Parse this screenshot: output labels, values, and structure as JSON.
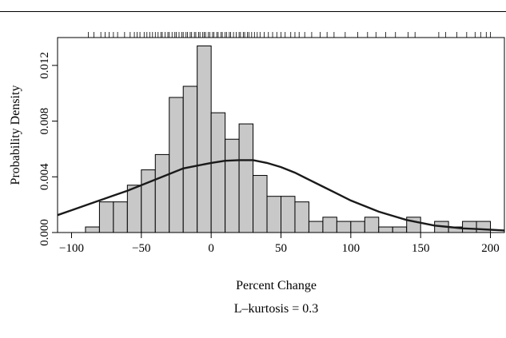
{
  "chart_data": {
    "type": "bar",
    "xlabel": "Percent Change",
    "ylabel": "Probability Density",
    "subtitle": "L–kurtosis = 0.3",
    "xlim": [
      -110,
      210
    ],
    "ylim": [
      0.0,
      0.014
    ],
    "x_ticks": [
      {
        "value": -100,
        "label": "−100"
      },
      {
        "value": -50,
        "label": "−50"
      },
      {
        "value": 0,
        "label": "0"
      },
      {
        "value": 50,
        "label": "50"
      },
      {
        "value": 100,
        "label": "100"
      },
      {
        "value": 150,
        "label": "150"
      },
      {
        "value": 200,
        "label": "200"
      }
    ],
    "y_ticks": [
      {
        "value": 0.0,
        "label": "0.000"
      },
      {
        "value": 0.004,
        "label": "0.004"
      },
      {
        "value": 0.008,
        "label": "0.008"
      },
      {
        "value": 0.012,
        "label": "0.012"
      }
    ],
    "histogram": {
      "bins": [
        {
          "x0": -90,
          "x1": -80,
          "density": 0.0004
        },
        {
          "x0": -80,
          "x1": -70,
          "density": 0.0022
        },
        {
          "x0": -70,
          "x1": -60,
          "density": 0.0022
        },
        {
          "x0": -60,
          "x1": -50,
          "density": 0.0034
        },
        {
          "x0": -50,
          "x1": -40,
          "density": 0.0045
        },
        {
          "x0": -40,
          "x1": -30,
          "density": 0.0056
        },
        {
          "x0": -30,
          "x1": -20,
          "density": 0.0097
        },
        {
          "x0": -20,
          "x1": -10,
          "density": 0.0105
        },
        {
          "x0": -10,
          "x1": 0,
          "density": 0.0134
        },
        {
          "x0": 0,
          "x1": 10,
          "density": 0.0086
        },
        {
          "x0": 10,
          "x1": 20,
          "density": 0.0067
        },
        {
          "x0": 20,
          "x1": 30,
          "density": 0.0078
        },
        {
          "x0": 30,
          "x1": 40,
          "density": 0.0041
        },
        {
          "x0": 40,
          "x1": 50,
          "density": 0.0026
        },
        {
          "x0": 50,
          "x1": 60,
          "density": 0.0026
        },
        {
          "x0": 60,
          "x1": 70,
          "density": 0.0022
        },
        {
          "x0": 70,
          "x1": 80,
          "density": 0.0008
        },
        {
          "x0": 80,
          "x1": 90,
          "density": 0.0011
        },
        {
          "x0": 90,
          "x1": 100,
          "density": 0.0008
        },
        {
          "x0": 100,
          "x1": 110,
          "density": 0.0008
        },
        {
          "x0": 110,
          "x1": 120,
          "density": 0.0011
        },
        {
          "x0": 120,
          "x1": 130,
          "density": 0.0004
        },
        {
          "x0": 130,
          "x1": 140,
          "density": 0.0004
        },
        {
          "x0": 140,
          "x1": 150,
          "density": 0.0011
        },
        {
          "x0": 150,
          "x1": 160,
          "density": 0.0
        },
        {
          "x0": 160,
          "x1": 170,
          "density": 0.0008
        },
        {
          "x0": 170,
          "x1": 180,
          "density": 0.0004
        },
        {
          "x0": 180,
          "x1": 190,
          "density": 0.0008
        },
        {
          "x0": 190,
          "x1": 200,
          "density": 0.0008
        }
      ],
      "fill_color": "#c8c8c8",
      "stroke_color": "#000000"
    },
    "density_curve": {
      "points": [
        [
          -110,
          0.00125
        ],
        [
          -100,
          0.0016
        ],
        [
          -90,
          0.00195
        ],
        [
          -80,
          0.0023
        ],
        [
          -70,
          0.00265
        ],
        [
          -60,
          0.003
        ],
        [
          -50,
          0.0034
        ],
        [
          -40,
          0.0038
        ],
        [
          -30,
          0.0042
        ],
        [
          -20,
          0.0046
        ],
        [
          -10,
          0.0048
        ],
        [
          0,
          0.005
        ],
        [
          10,
          0.00515
        ],
        [
          20,
          0.0052
        ],
        [
          30,
          0.0052
        ],
        [
          40,
          0.005
        ],
        [
          50,
          0.0047
        ],
        [
          60,
          0.0043
        ],
        [
          70,
          0.0038
        ],
        [
          80,
          0.0033
        ],
        [
          90,
          0.0028
        ],
        [
          100,
          0.0023
        ],
        [
          110,
          0.0019
        ],
        [
          120,
          0.0015
        ],
        [
          130,
          0.0012
        ],
        [
          140,
          0.0009
        ],
        [
          150,
          0.0007
        ],
        [
          160,
          0.0005
        ],
        [
          170,
          0.0004
        ],
        [
          180,
          0.0003
        ],
        [
          190,
          0.00025
        ],
        [
          200,
          0.0002
        ],
        [
          210,
          0.00015
        ]
      ],
      "color": "#1a1a1a"
    },
    "rug": {
      "values": [
        -88,
        -84,
        -79,
        -76,
        -73,
        -70,
        -67,
        -62,
        -58,
        -55,
        -53,
        -51,
        -48,
        -46,
        -44,
        -42,
        -40,
        -38,
        -36,
        -35,
        -33,
        -31,
        -30,
        -28,
        -26,
        -25,
        -23,
        -21,
        -20,
        -18,
        -17,
        -15,
        -14,
        -12,
        -11,
        -9,
        -8,
        -6,
        -5,
        -4,
        -2,
        -1,
        1,
        2,
        4,
        5,
        7,
        8,
        10,
        11,
        13,
        14,
        16,
        18,
        20,
        21,
        23,
        24,
        26,
        27,
        29,
        31,
        33,
        35,
        38,
        41,
        44,
        47,
        50,
        53,
        57,
        60,
        63,
        67,
        72,
        78,
        83,
        88,
        96,
        105,
        112,
        118,
        125,
        132,
        141,
        146,
        163,
        168,
        176,
        183,
        189,
        193,
        197,
        200
      ]
    },
    "grid": false,
    "legend": "none"
  }
}
